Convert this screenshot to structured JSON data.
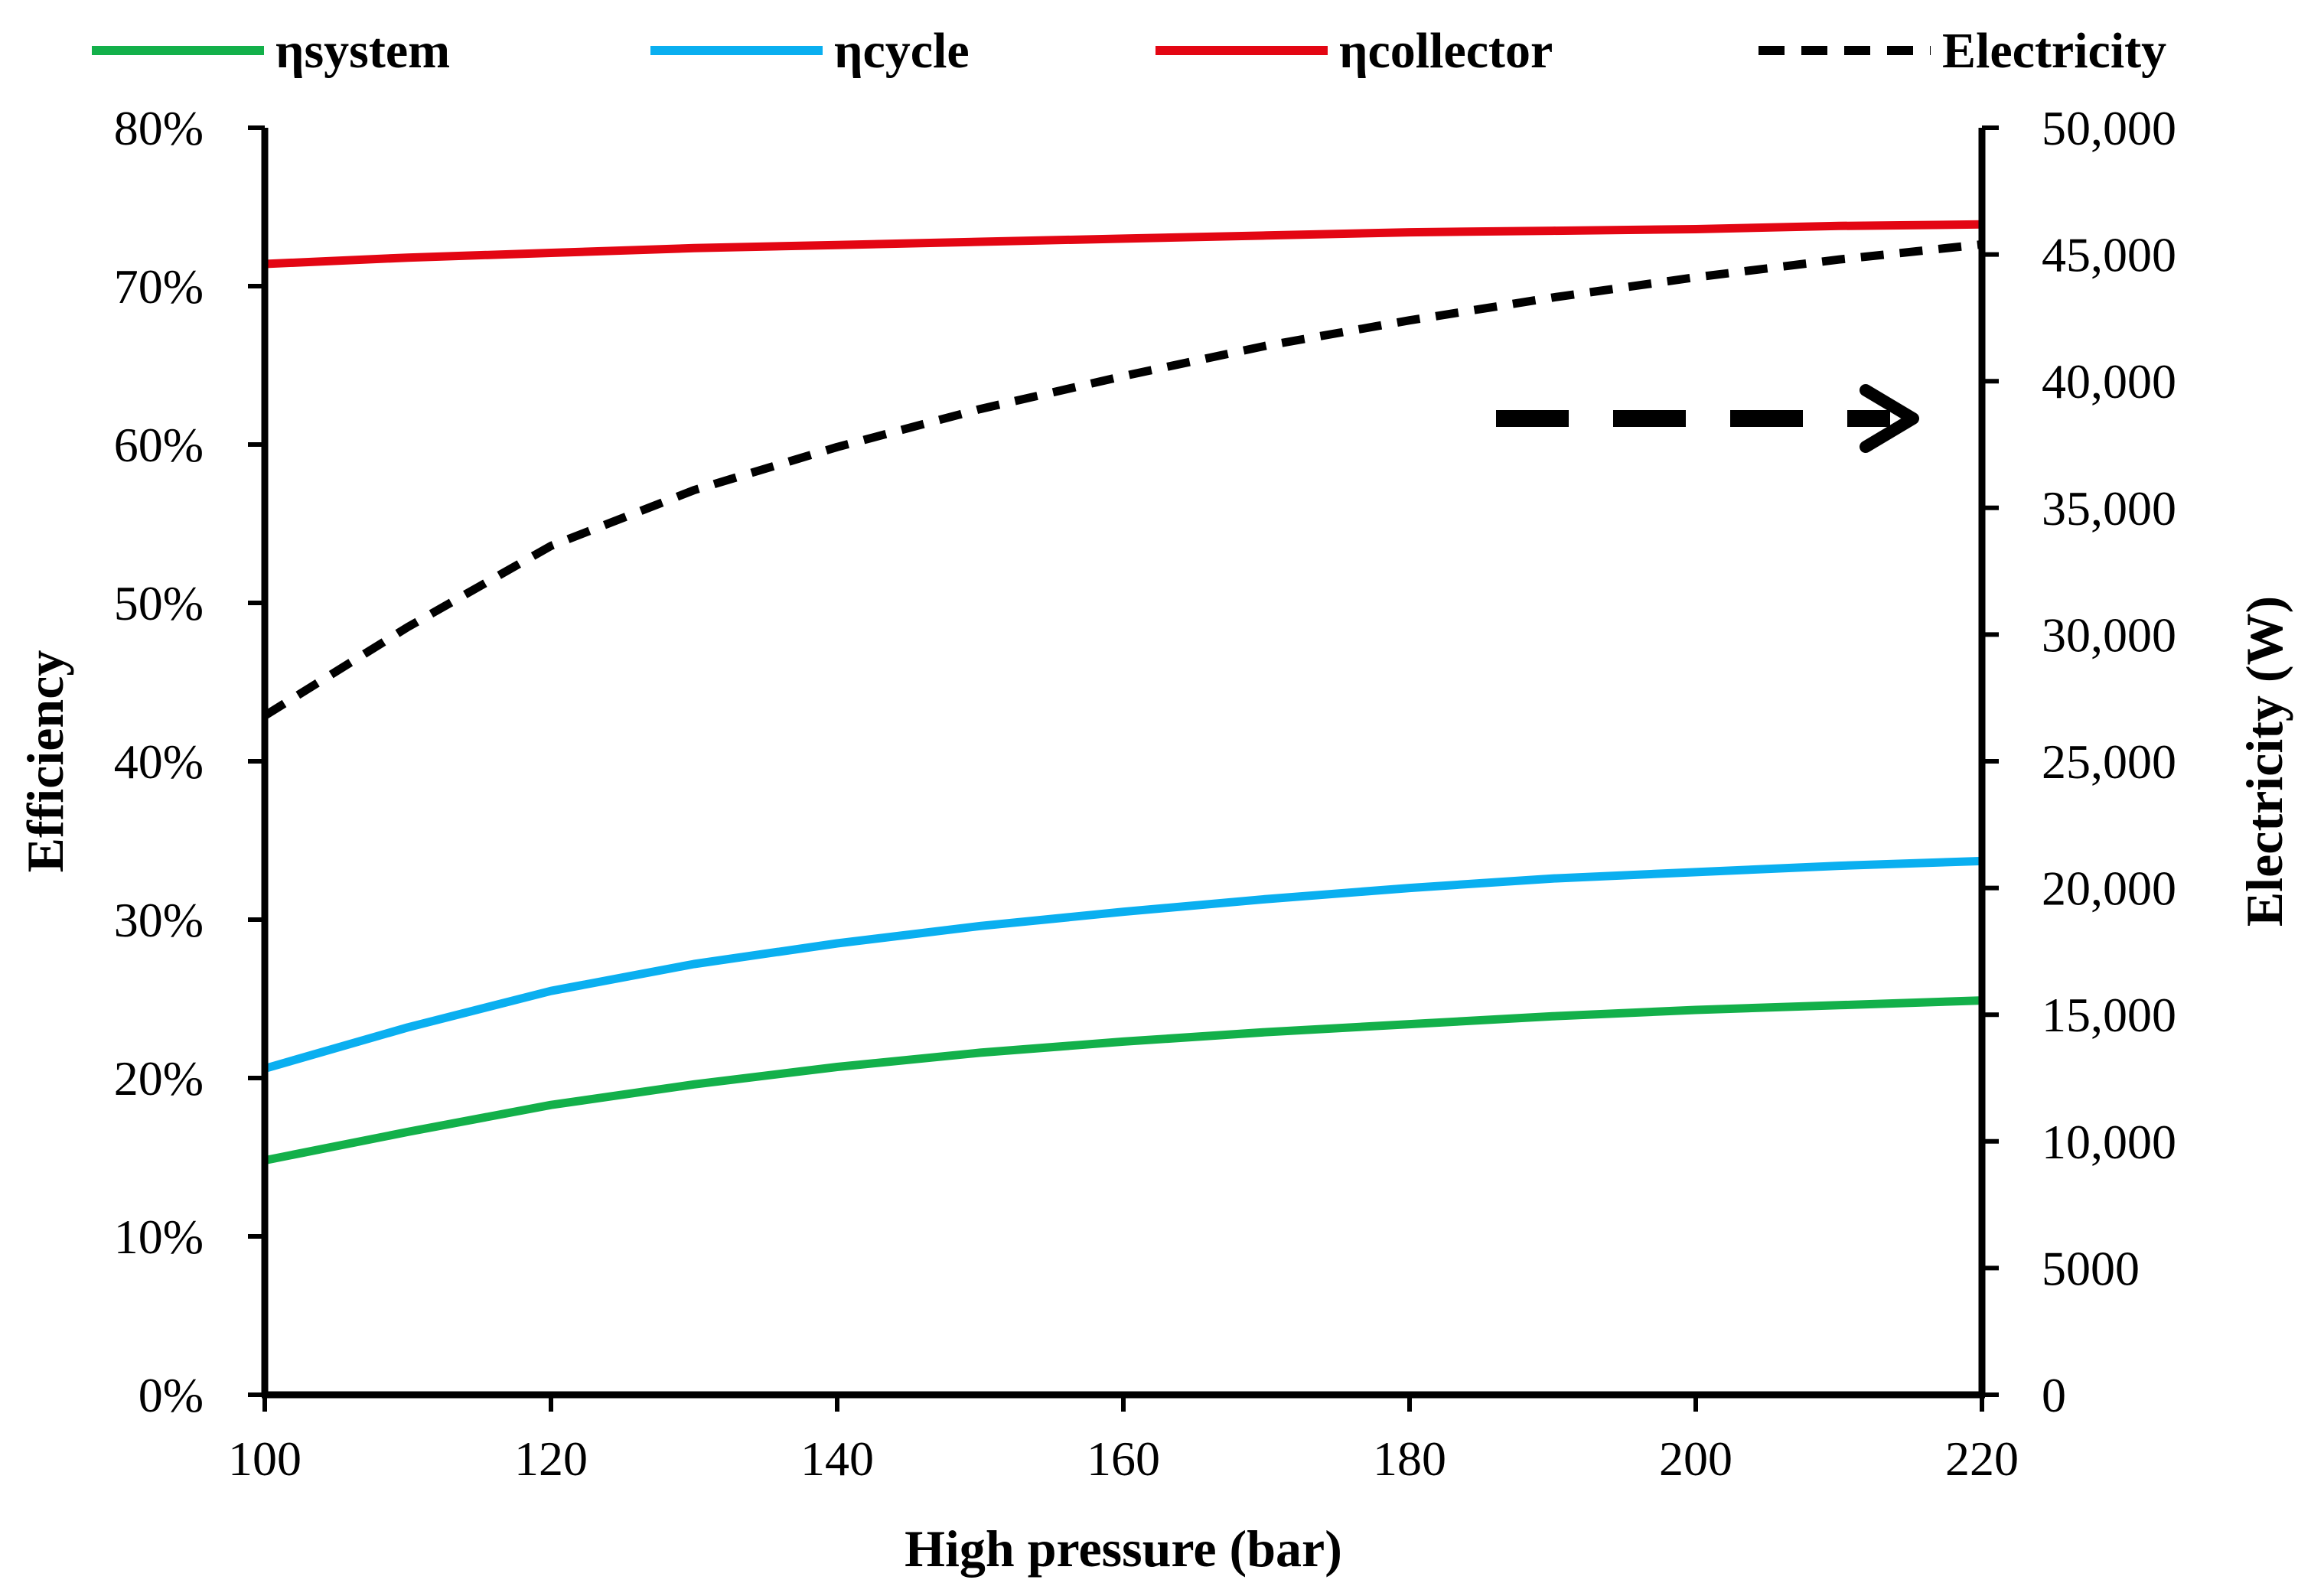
{
  "chart_data": {
    "type": "line",
    "title": "",
    "xlabel": "High pressure (bar)",
    "ylabel_left": "Efficiency",
    "ylabel_right": "Electricity (W)",
    "x": [
      100,
      110,
      120,
      130,
      140,
      150,
      160,
      170,
      180,
      190,
      200,
      210,
      220
    ],
    "xlim": [
      100,
      220
    ],
    "x_ticks": [
      "100",
      "120",
      "140",
      "160",
      "180",
      "200",
      "220"
    ],
    "ylim_left": [
      0,
      80
    ],
    "y_ticks_left": [
      "0%",
      "10%",
      "20%",
      "30%",
      "40%",
      "50%",
      "60%",
      "70%",
      "80%"
    ],
    "ylim_right": [
      0,
      50000
    ],
    "y_ticks_right": [
      "0",
      "5000",
      "10,000",
      "15,000",
      "20,000",
      "25,000",
      "30,000",
      "35,000",
      "40,000",
      "45,000",
      "50,000"
    ],
    "grid": false,
    "legend_position": "top",
    "series": [
      {
        "name": "ηsystem",
        "axis": "left",
        "color": "#13b04a",
        "style": "solid",
        "values": [
          14.8,
          16.6,
          18.3,
          19.6,
          20.7,
          21.6,
          22.3,
          22.9,
          23.4,
          23.9,
          24.3,
          24.6,
          24.9
        ]
      },
      {
        "name": "ηcycle",
        "axis": "left",
        "color": "#0aaff0",
        "style": "solid",
        "values": [
          20.6,
          23.2,
          25.5,
          27.2,
          28.5,
          29.6,
          30.5,
          31.3,
          32.0,
          32.6,
          33.0,
          33.4,
          33.7
        ]
      },
      {
        "name": "ηcollector",
        "axis": "left",
        "color": "#e30613",
        "style": "solid",
        "values": [
          71.4,
          71.8,
          72.1,
          72.4,
          72.6,
          72.8,
          73.0,
          73.2,
          73.4,
          73.5,
          73.6,
          73.8,
          73.9
        ]
      },
      {
        "name": "Electricity",
        "axis": "right",
        "color": "#000000",
        "style": "dashed",
        "values": [
          26800,
          30300,
          33500,
          35700,
          37400,
          38900,
          40200,
          41400,
          42400,
          43300,
          44100,
          44800,
          45400
        ]
      }
    ],
    "annotations": [
      {
        "type": "dashed-arrow",
        "text": "",
        "points_to": "right-axis"
      }
    ]
  }
}
